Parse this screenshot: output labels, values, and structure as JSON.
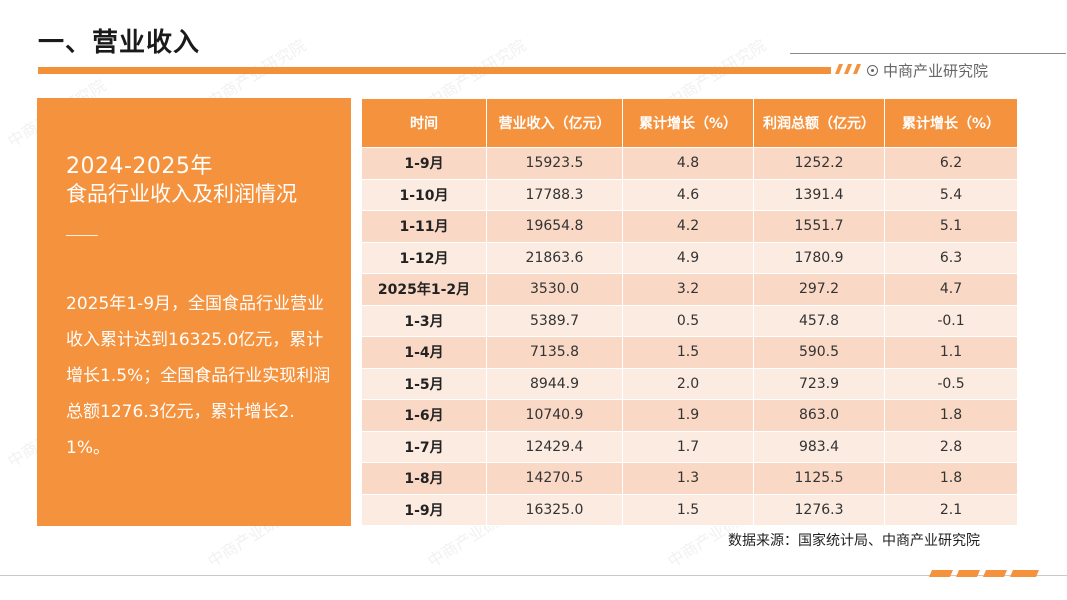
{
  "header": {
    "title": "一、营业收入",
    "brand": "中商产业研究院"
  },
  "panel": {
    "year": "2024-2025年",
    "subtitle": "食品行业收入及利润情况",
    "body": "2025年1-9月，全国食品行业营业收入累计达到16325.0亿元，累计增长1.5%；全国食品行业实现利润总额1276.3亿元，累计增长2.1%。"
  },
  "table": {
    "headers": [
      "时间",
      "营业收入（亿元）",
      "累计增长（%）",
      "利润总额（亿元）",
      "累计增长（%）"
    ],
    "rows": [
      [
        "1-9月",
        "15923.5",
        "4.8",
        "1252.2",
        "6.2"
      ],
      [
        "1-10月",
        "17788.3",
        "4.6",
        "1391.4",
        "5.4"
      ],
      [
        "1-11月",
        "19654.8",
        "4.2",
        "1551.7",
        "5.1"
      ],
      [
        "1-12月",
        "21863.6",
        "4.9",
        "1780.9",
        "6.3"
      ],
      [
        "2025年1-2月",
        "3530.0",
        "3.2",
        "297.2",
        "4.7"
      ],
      [
        "1-3月",
        "5389.7",
        "0.5",
        "457.8",
        "-0.1"
      ],
      [
        "1-4月",
        "7135.8",
        "1.5",
        "590.5",
        "1.1"
      ],
      [
        "1-5月",
        "8944.9",
        "2.0",
        "723.9",
        "-0.5"
      ],
      [
        "1-6月",
        "10740.9",
        "1.9",
        "863.0",
        "1.8"
      ],
      [
        "1-7月",
        "12429.4",
        "1.7",
        "983.4",
        "2.8"
      ],
      [
        "1-8月",
        "14270.5",
        "1.3",
        "1125.5",
        "1.8"
      ],
      [
        "1-9月",
        "16325.0",
        "1.5",
        "1276.3",
        "2.1"
      ]
    ]
  },
  "footer": {
    "source": "数据来源：国家统计局、中商产业研究院"
  },
  "watermark": "中商产业研究院",
  "colors": {
    "accent": "#f5923d",
    "row_dark": "#f9d9c6",
    "row_light": "#fcebe1"
  }
}
